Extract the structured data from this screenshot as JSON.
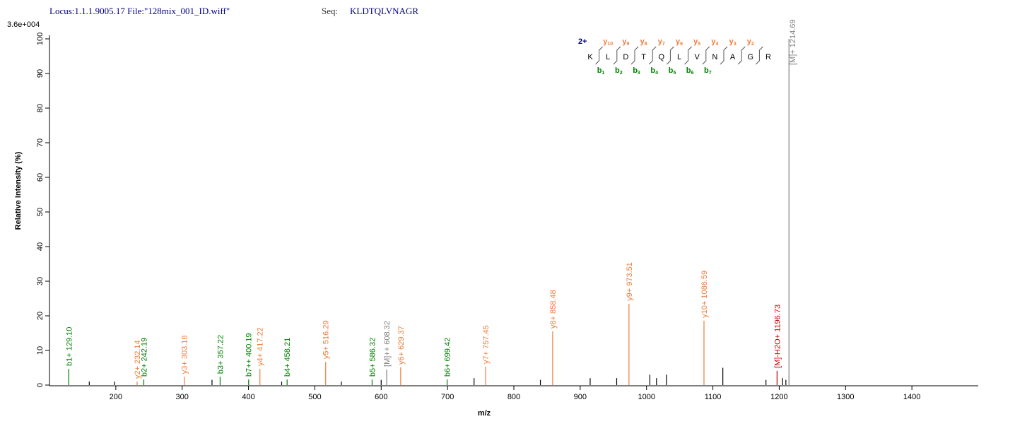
{
  "header": {
    "locus": "Locus:1.1.1.9005.17 File:\"128mix_001_ID.wiff\"",
    "seq_label": "Seq:",
    "seq": "KLDTQLVNAGR"
  },
  "sequence": {
    "charge": "2+",
    "letters": [
      "K",
      "L",
      "D",
      "T",
      "Q",
      "L",
      "V",
      "N",
      "A",
      "G",
      "R"
    ],
    "y_ions": [
      {
        "ion": "y",
        "num": "10"
      },
      {
        "ion": "y",
        "num": "9"
      },
      {
        "ion": "y",
        "num": "8"
      },
      {
        "ion": "y",
        "num": "7"
      },
      {
        "ion": "y",
        "num": "6"
      },
      {
        "ion": "y",
        "num": "5"
      },
      {
        "ion": "y",
        "num": "4"
      },
      {
        "ion": "y",
        "num": "3"
      },
      {
        "ion": "y",
        "num": "2"
      }
    ],
    "b_ions": [
      {
        "ion": "b",
        "num": "1"
      },
      {
        "ion": "b",
        "num": "2"
      },
      {
        "ion": "b",
        "num": "3"
      },
      {
        "ion": "b",
        "num": "4"
      },
      {
        "ion": "b",
        "num": "5"
      },
      {
        "ion": "b",
        "num": "6"
      },
      {
        "ion": "b",
        "num": "7"
      }
    ]
  },
  "chart_data": {
    "type": "stem",
    "intensity_scale": "3.6e+004",
    "x_label": "m/z",
    "y_label": "Relative   Intensity (%)",
    "xlim": [
      100,
      1500
    ],
    "xticks": [
      200,
      300,
      400,
      500,
      600,
      700,
      800,
      900,
      1000,
      1100,
      1200,
      1300,
      1400
    ],
    "ylim": [
      0,
      100
    ],
    "yticks": [
      0,
      10,
      20,
      30,
      40,
      50,
      60,
      70,
      80,
      90,
      100
    ],
    "x": [
      129.1,
      232.14,
      242.19,
      303.18,
      357.22,
      400.19,
      417.22,
      458.21,
      516.29,
      586.32,
      608.32,
      629.37,
      699.42,
      757.45,
      858.48,
      973.51,
      1086.59,
      1196.73,
      1214.69,
      160,
      198,
      345,
      450,
      540,
      600,
      740,
      840,
      915,
      955,
      1005,
      1015,
      1030,
      1115,
      1180,
      1205,
      1210
    ],
    "values": [
      4.7,
      1,
      1.6,
      2.4,
      2.4,
      1.6,
      4.7,
      1.6,
      6.7,
      1.6,
      4.5,
      5.1,
      1.6,
      5.3,
      15.5,
      23.5,
      18.6,
      4.1,
      100,
      1,
      1,
      1.5,
      1,
      1,
      1.5,
      2,
      1.5,
      2,
      2,
      3,
      2,
      3,
      5,
      1.5,
      2,
      1.5
    ],
    "labels": [
      "b1+ 129.10",
      "y2+ 232.14",
      "b2+ 242.19",
      "y3+ 303.18",
      "b3+ 357.22",
      "b7++ 400.19",
      "y4+ 417.22",
      "b4+ 458.21",
      "y5+ 516.29",
      "b5+ 586.32",
      "[M]++ 608.32",
      "y6+ 629.37",
      "b6+ 699.42",
      "y7+ 757.45",
      "y8+ 858.48",
      "y9+ 973.51",
      "y10+ 1086.59",
      "[M]-H2O+ 1196.73",
      "[M]+ 1214.69",
      null,
      null,
      null,
      null,
      null,
      null,
      null,
      null,
      null,
      null,
      null,
      null,
      null,
      null,
      null,
      null,
      null
    ],
    "colors": [
      "#008000",
      "#f07c3c",
      "#008000",
      "#f07c3c",
      "#008000",
      "#008000",
      "#f07c3c",
      "#008000",
      "#f07c3c",
      "#008000",
      "#808080",
      "#f07c3c",
      "#008000",
      "#f07c3c",
      "#f07c3c",
      "#f07c3c",
      "#f07c3c",
      "#c00000",
      "#808080",
      "#000000",
      "#000000",
      "#000000",
      "#000000",
      "#000000",
      "#000000",
      "#000000",
      "#000000",
      "#000000",
      "#000000",
      "#000000",
      "#000000",
      "#000000",
      "#000000",
      "#000000",
      "#000000",
      "#000000"
    ]
  }
}
